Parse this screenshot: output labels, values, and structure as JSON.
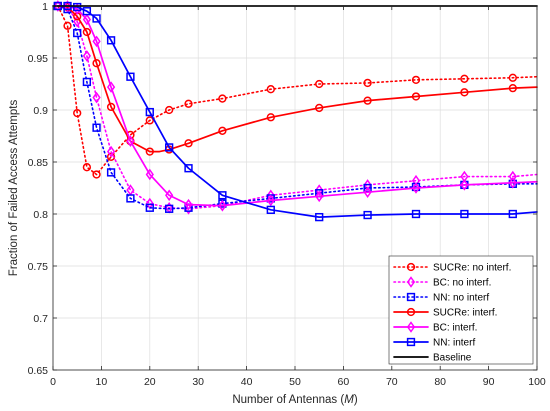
{
  "chart_data": {
    "type": "line",
    "xlabel_text": "Number of Antennas (",
    "xlabel_var": "M",
    "xlabel_close": ")",
    "ylabel": "Fraction of Failed Access Attempts",
    "xlim": [
      0,
      100
    ],
    "ylim": [
      0.65,
      1.0
    ],
    "xticks": [
      0,
      10,
      20,
      30,
      40,
      50,
      60,
      70,
      80,
      90,
      100
    ],
    "yticks": [
      0.65,
      0.7,
      0.75,
      0.8,
      0.85,
      0.9,
      0.95,
      1
    ],
    "xtick_labels": [
      "0",
      "10",
      "20",
      "30",
      "40",
      "50",
      "60",
      "70",
      "80",
      "90",
      "100"
    ],
    "ytick_labels": [
      "0.65",
      "0.7",
      "0.75",
      "0.8",
      "0.85",
      "0.9",
      "0.95",
      "1"
    ],
    "grid": true,
    "legend_position": "bottom-right",
    "series": [
      {
        "name": "SUCRe: no interf.",
        "color": "#ff0000",
        "style": "dotted",
        "marker": "circle",
        "x": [
          1,
          3,
          5,
          7,
          9,
          12,
          16,
          20,
          24,
          28,
          35,
          45,
          55,
          65,
          75,
          85,
          95,
          100
        ],
        "y": [
          1.0,
          0.981,
          0.897,
          0.845,
          0.838,
          0.855,
          0.876,
          0.89,
          0.9,
          0.906,
          0.911,
          0.92,
          0.925,
          0.926,
          0.929,
          0.93,
          0.931,
          0.932
        ],
        "marker_x": [
          1,
          3,
          5,
          7,
          9,
          12,
          16,
          20,
          24,
          28,
          35,
          45,
          55,
          65,
          75,
          85,
          95
        ]
      },
      {
        "name": "BC: no interf.",
        "color": "#ff00ff",
        "style": "dotted",
        "marker": "diamond",
        "x": [
          1,
          3,
          5,
          7,
          9,
          12,
          16,
          20,
          24,
          28,
          35,
          45,
          55,
          65,
          75,
          85,
          95,
          100
        ],
        "y": [
          1.0,
          0.999,
          0.985,
          0.952,
          0.912,
          0.86,
          0.823,
          0.81,
          0.806,
          0.805,
          0.808,
          0.818,
          0.823,
          0.828,
          0.832,
          0.836,
          0.836,
          0.838
        ],
        "marker_x": [
          1,
          3,
          5,
          7,
          9,
          12,
          16,
          20,
          24,
          28,
          35,
          45,
          55,
          65,
          75,
          85,
          95
        ]
      },
      {
        "name": "NN: no interf",
        "color": "#0000ff",
        "style": "dotted",
        "marker": "square",
        "x": [
          1,
          3,
          5,
          7,
          9,
          12,
          16,
          20,
          24,
          28,
          35,
          45,
          55,
          65,
          75,
          85,
          95,
          100
        ],
        "y": [
          1.0,
          0.997,
          0.974,
          0.927,
          0.883,
          0.84,
          0.815,
          0.806,
          0.805,
          0.806,
          0.81,
          0.815,
          0.82,
          0.825,
          0.826,
          0.828,
          0.829,
          0.829
        ],
        "marker_x": [
          1,
          3,
          5,
          7,
          9,
          12,
          16,
          20,
          24,
          28,
          35,
          45,
          55,
          65,
          75,
          85,
          95
        ]
      },
      {
        "name": "SUCRe: interf.",
        "color": "#ff0000",
        "style": "solid",
        "marker": "circle",
        "x": [
          1,
          3,
          5,
          7,
          9,
          12,
          16,
          20,
          22,
          24,
          28,
          35,
          45,
          55,
          65,
          75,
          85,
          95,
          100
        ],
        "y": [
          1.0,
          0.999,
          0.99,
          0.975,
          0.945,
          0.903,
          0.87,
          0.86,
          0.86,
          0.862,
          0.868,
          0.88,
          0.893,
          0.902,
          0.909,
          0.913,
          0.917,
          0.921,
          0.922
        ],
        "marker_x": [
          1,
          3,
          5,
          7,
          9,
          12,
          16,
          20,
          24,
          28,
          35,
          45,
          55,
          65,
          75,
          85,
          95
        ]
      },
      {
        "name": "BC: interf.",
        "color": "#ff00ff",
        "style": "solid",
        "marker": "diamond",
        "x": [
          1,
          3,
          5,
          7,
          9,
          12,
          16,
          20,
          24,
          28,
          35,
          45,
          55,
          65,
          75,
          85,
          95,
          100
        ],
        "y": [
          1.0,
          1.0,
          0.997,
          0.987,
          0.966,
          0.922,
          0.87,
          0.838,
          0.818,
          0.809,
          0.808,
          0.813,
          0.817,
          0.821,
          0.825,
          0.828,
          0.83,
          0.831
        ],
        "marker_x": [
          1,
          3,
          5,
          7,
          9,
          12,
          16,
          20,
          24,
          28,
          35,
          45,
          55,
          65,
          75,
          85,
          95
        ]
      },
      {
        "name": "NN: interf",
        "color": "#0000ff",
        "style": "solid",
        "marker": "square",
        "x": [
          1,
          3,
          5,
          7,
          9,
          12,
          16,
          20,
          24,
          28,
          35,
          45,
          55,
          65,
          75,
          85,
          95,
          100
        ],
        "y": [
          1.0,
          1.0,
          0.999,
          0.995,
          0.988,
          0.967,
          0.932,
          0.898,
          0.864,
          0.844,
          0.818,
          0.804,
          0.797,
          0.799,
          0.8,
          0.8,
          0.8,
          0.802
        ],
        "marker_x": [
          1,
          3,
          5,
          7,
          9,
          12,
          16,
          20,
          24,
          28,
          35,
          45,
          55,
          65,
          75,
          85,
          95
        ]
      },
      {
        "name": "Baseline",
        "color": "#000000",
        "style": "solid",
        "marker": "none",
        "x": [
          0,
          100
        ],
        "y": [
          1.0,
          1.0
        ],
        "marker_x": []
      }
    ]
  }
}
